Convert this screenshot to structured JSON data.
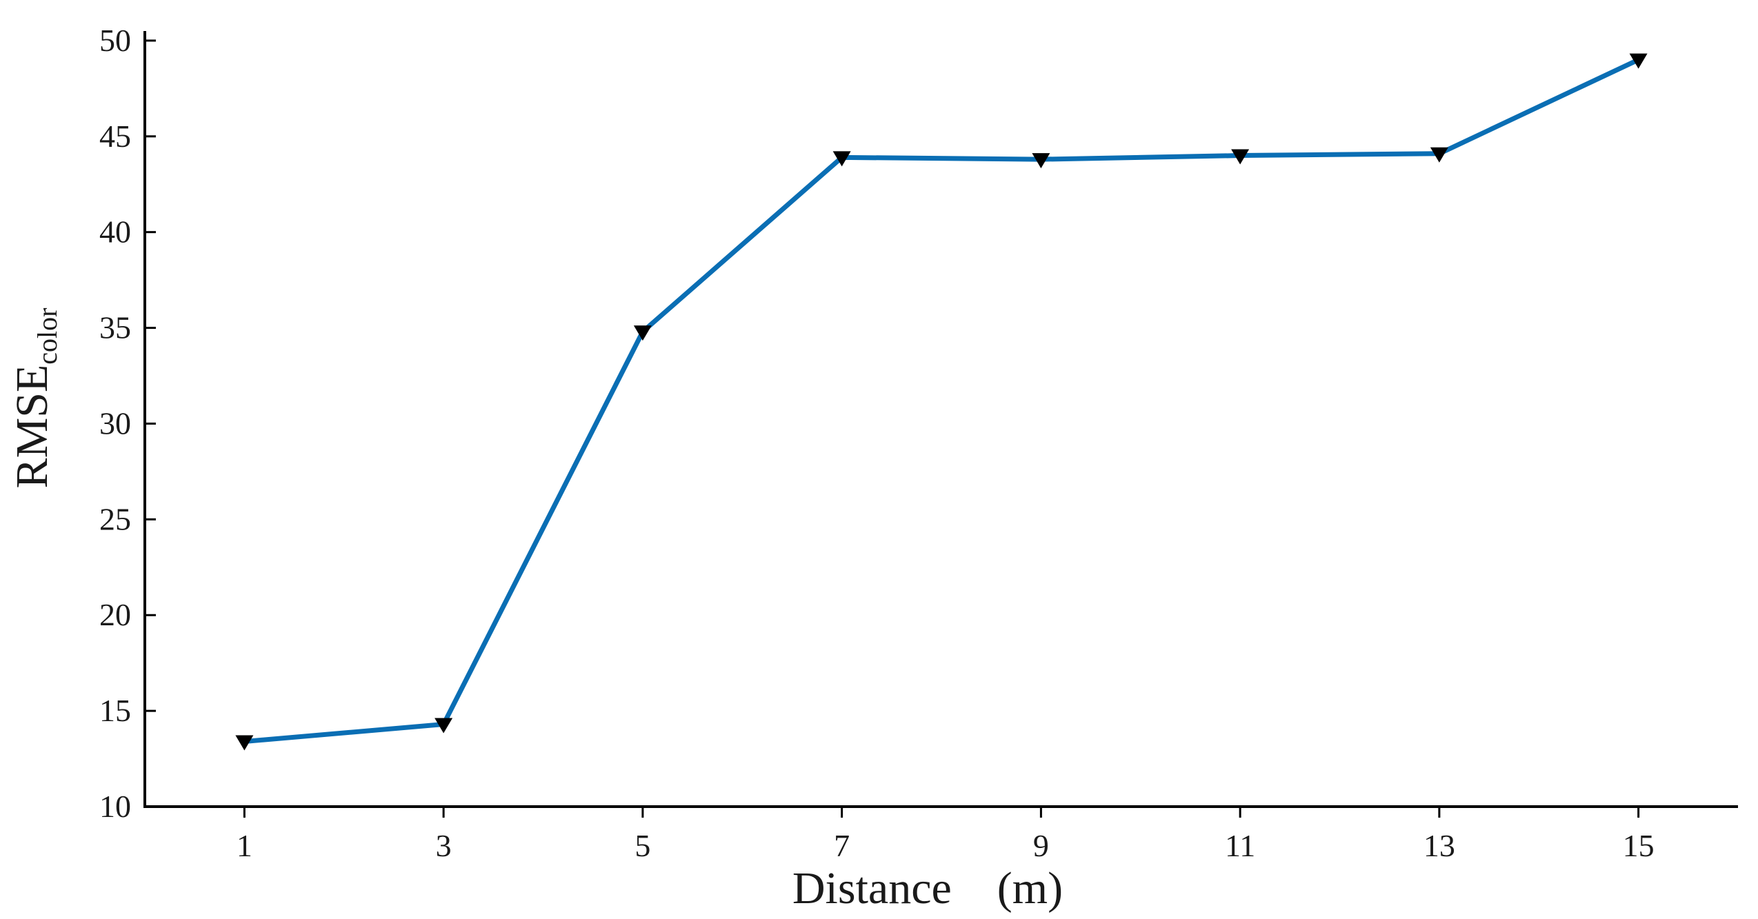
{
  "chart_data": {
    "type": "line",
    "title": "",
    "xlabel": "Distance (m)",
    "ylabel": "RMSE",
    "ylabel_subscript": "color",
    "x": [
      1,
      3,
      5,
      7,
      9,
      11,
      13,
      15
    ],
    "x_ticks": [
      "1",
      "3",
      "5",
      "7",
      "9",
      "11",
      "13",
      "15"
    ],
    "y_ticks": [
      "10",
      "15",
      "20",
      "25",
      "30",
      "35",
      "40",
      "45",
      "50"
    ],
    "xlim": [
      0,
      16
    ],
    "ylim": [
      10,
      50.5
    ],
    "grid": false,
    "series": [
      {
        "values": [
          13.4,
          14.3,
          34.8,
          43.9,
          43.8,
          44.0,
          44.1,
          49.0
        ],
        "color": "#0a6eb4",
        "marker": "down-triangle",
        "marker_color": "#000000"
      }
    ]
  }
}
